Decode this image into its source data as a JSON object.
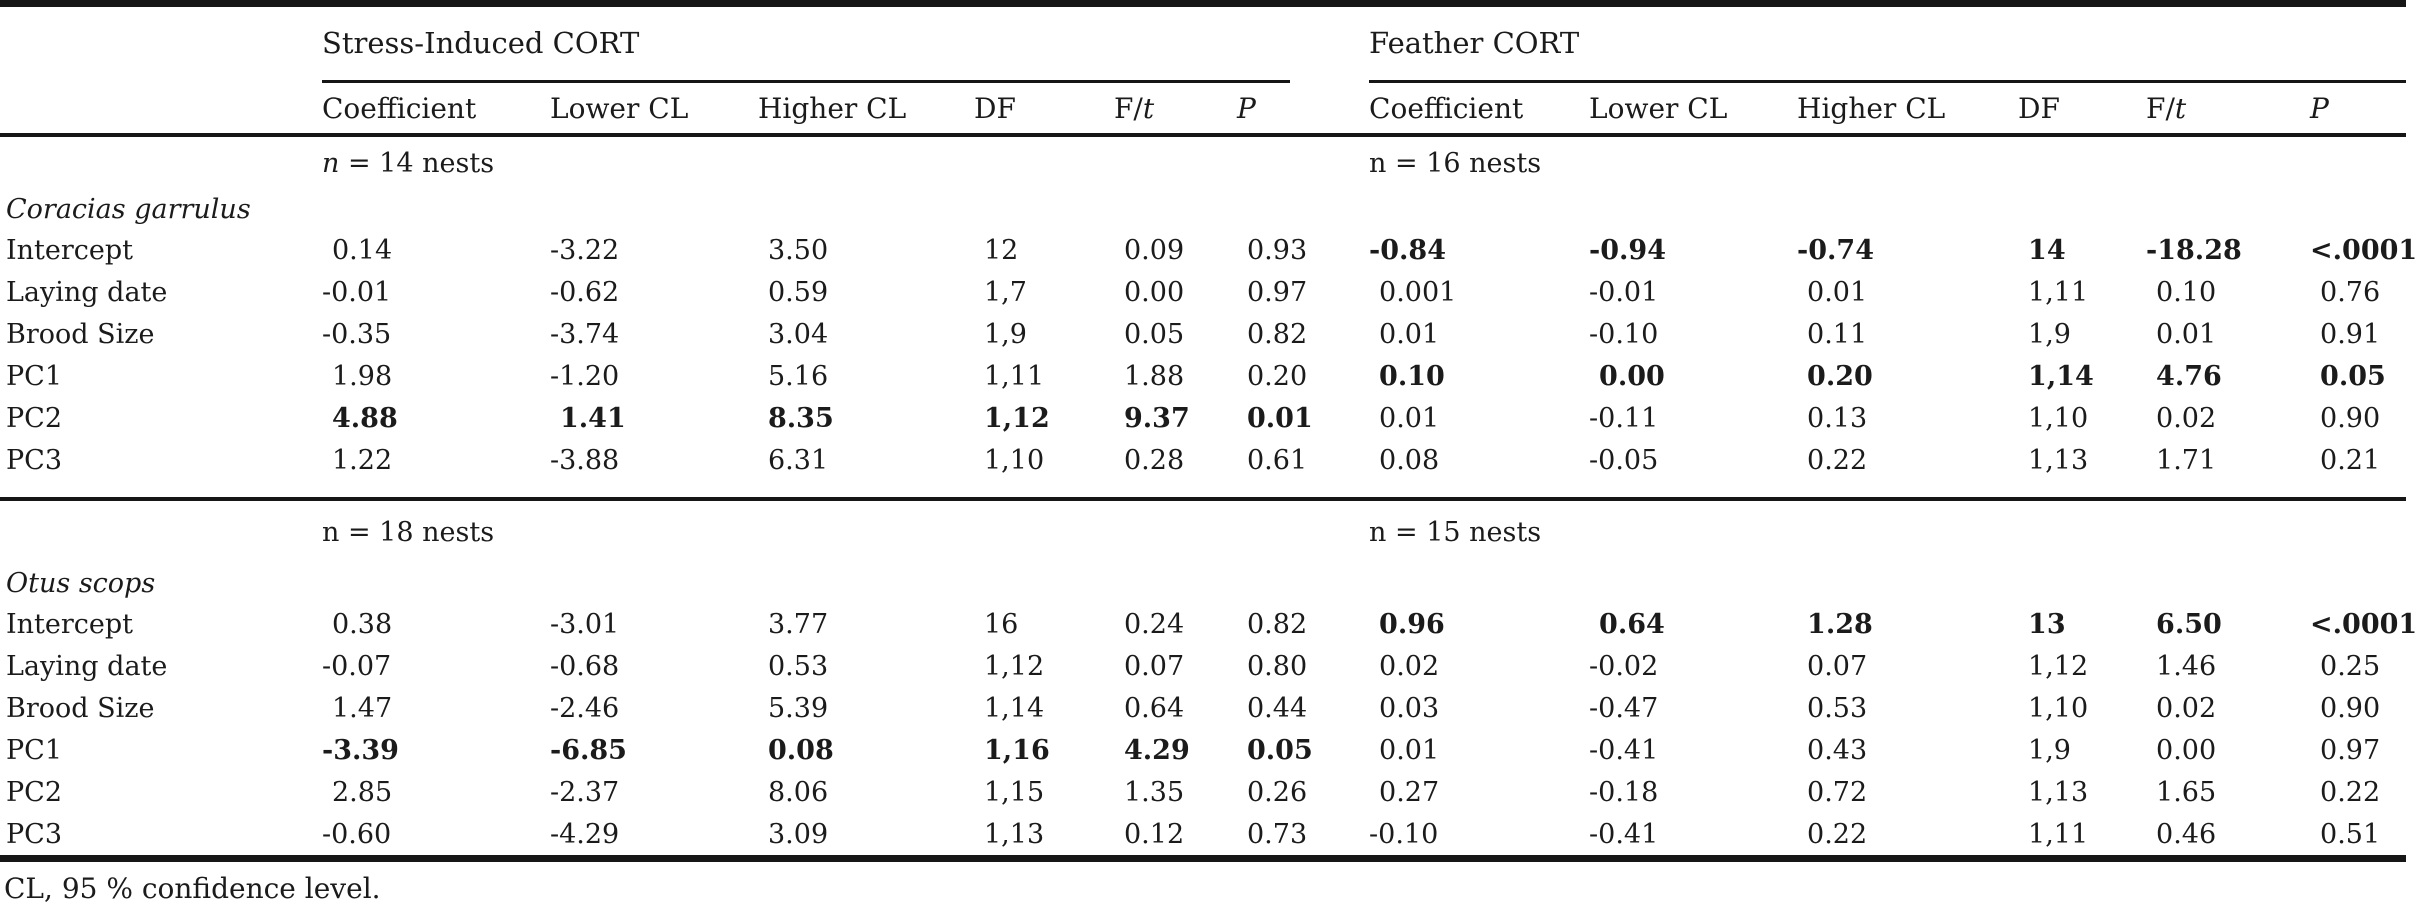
{
  "table": {
    "group_headers": [
      {
        "label": "Stress-Induced CORT"
      },
      {
        "label": "Feather CORT"
      }
    ],
    "columns": [
      "Coefficient",
      "Lower CL",
      "Higher CL",
      "DF",
      "F/t",
      "P"
    ],
    "sections": [
      {
        "stress_n": "n = 14 nests",
        "feather_n": "n = 16 nests",
        "species": "Coracias garrulus",
        "rows": [
          {
            "label": "Intercept",
            "stress": [
              "0.14",
              "-3.22",
              "3.50",
              "12",
              "0.09",
              "0.93"
            ],
            "stress_bold": false,
            "feather": [
              "-0.84",
              "-0.94",
              "-0.74",
              "14",
              "-18.28",
              "<.0001"
            ],
            "feather_bold": true
          },
          {
            "label": "Laying date",
            "stress": [
              "-0.01",
              "-0.62",
              "0.59",
              "1,7",
              "0.00",
              "0.97"
            ],
            "stress_bold": false,
            "feather": [
              "0.001",
              "-0.01",
              "0.01",
              "1,11",
              "0.10",
              "0.76"
            ],
            "feather_bold": false
          },
          {
            "label": "Brood Size",
            "stress": [
              "-0.35",
              "-3.74",
              "3.04",
              "1,9",
              "0.05",
              "0.82"
            ],
            "stress_bold": false,
            "feather": [
              "0.01",
              "-0.10",
              "0.11",
              "1,9",
              "0.01",
              "0.91"
            ],
            "feather_bold": false
          },
          {
            "label": "PC1",
            "stress": [
              "1.98",
              "-1.20",
              "5.16",
              "1,11",
              "1.88",
              "0.20"
            ],
            "stress_bold": false,
            "feather": [
              "0.10",
              "0.00",
              "0.20",
              "1,14",
              "4.76",
              "0.05"
            ],
            "feather_bold": true
          },
          {
            "label": "PC2",
            "stress": [
              "4.88",
              "1.41",
              "8.35",
              "1,12",
              "9.37",
              "0.01"
            ],
            "stress_bold": true,
            "feather": [
              "0.01",
              "-0.11",
              "0.13",
              "1,10",
              "0.02",
              "0.90"
            ],
            "feather_bold": false
          },
          {
            "label": "PC3",
            "stress": [
              "1.22",
              "-3.88",
              "6.31",
              "1,10",
              "0.28",
              "0.61"
            ],
            "stress_bold": false,
            "feather": [
              "0.08",
              "-0.05",
              "0.22",
              "1,13",
              "1.71",
              "0.21"
            ],
            "feather_bold": false
          }
        ]
      },
      {
        "stress_n": "n = 18 nests",
        "feather_n": "n = 15 nests",
        "species": "Otus scops",
        "rows": [
          {
            "label": "Intercept",
            "stress": [
              "0.38",
              "-3.01",
              "3.77",
              "16",
              "0.24",
              "0.82"
            ],
            "stress_bold": false,
            "feather": [
              "0.96",
              "0.64",
              "1.28",
              "13",
              "6.50",
              "<.0001"
            ],
            "feather_bold": true
          },
          {
            "label": "Laying date",
            "stress": [
              "-0.07",
              "-0.68",
              "0.53",
              "1,12",
              "0.07",
              "0.80"
            ],
            "stress_bold": false,
            "feather": [
              "0.02",
              "-0.02",
              "0.07",
              "1,12",
              "1.46",
              "0.25"
            ],
            "feather_bold": false
          },
          {
            "label": "Brood Size",
            "stress": [
              "1.47",
              "-2.46",
              "5.39",
              "1,14",
              "0.64",
              "0.44"
            ],
            "stress_bold": false,
            "feather": [
              "0.03",
              "-0.47",
              "0.53",
              "1,10",
              "0.02",
              "0.90"
            ],
            "feather_bold": false
          },
          {
            "label": "PC1",
            "stress": [
              "-3.39",
              "-6.85",
              "0.08",
              "1,16",
              "4.29",
              "0.05"
            ],
            "stress_bold": true,
            "feather": [
              "0.01",
              "-0.41",
              "0.43",
              "1,9",
              "0.00",
              "0.97"
            ],
            "feather_bold": false
          },
          {
            "label": "PC2",
            "stress": [
              "2.85",
              "-2.37",
              "8.06",
              "1,15",
              "1.35",
              "0.26"
            ],
            "stress_bold": false,
            "feather": [
              "0.27",
              "-0.18",
              "0.72",
              "1,13",
              "1.65",
              "0.22"
            ],
            "feather_bold": false
          },
          {
            "label": "PC3",
            "stress": [
              "-0.60",
              "-4.29",
              "3.09",
              "1,13",
              "0.12",
              "0.73"
            ],
            "stress_bold": false,
            "feather": [
              "-0.10",
              "-0.41",
              "0.22",
              "1,11",
              "0.46",
              "0.51"
            ],
            "feather_bold": false
          }
        ]
      }
    ],
    "footnote": "CL, 95 % confidence level.",
    "text_color": "#1b1b1b",
    "rule_color": "#161616"
  }
}
